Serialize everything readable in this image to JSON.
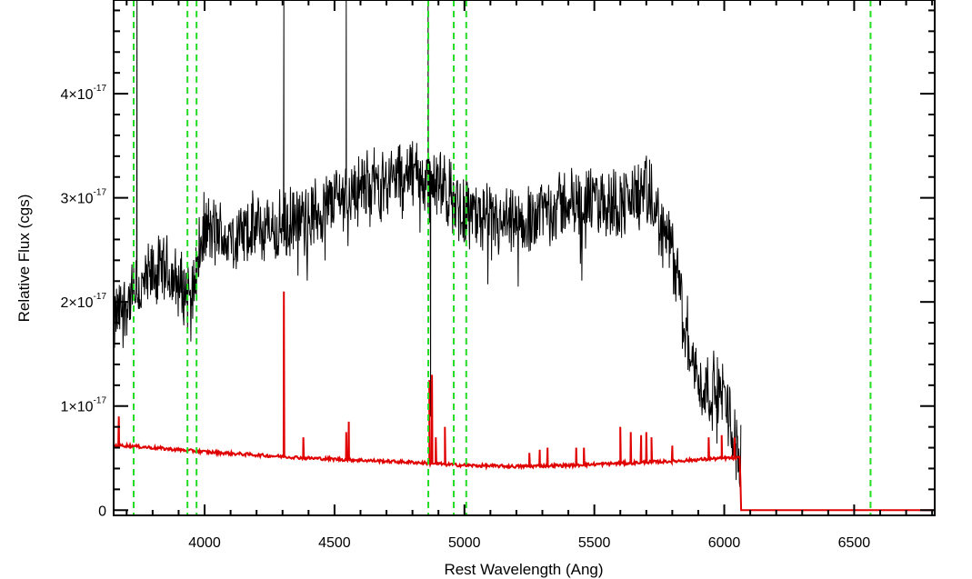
{
  "chart_data": {
    "type": "line",
    "title": "",
    "xlabel": "Rest Wavelength (Ang)",
    "ylabel": "Relative Flux (cgs)",
    "xlim": [
      3650,
      6810
    ],
    "ylim": [
      -0.05,
      4.9
    ],
    "y_unit_exponent": "-17",
    "x_ticks": [
      4000,
      4500,
      5000,
      5500,
      6000,
      6500
    ],
    "x_tick_labels": [
      "4000",
      "4500",
      "5000",
      "5500",
      "6000",
      "6500"
    ],
    "y_ticks": [
      0,
      1,
      2,
      3,
      4
    ],
    "y_tick_labels": [
      "0",
      "1×10",
      "2×10",
      "3×10",
      "4×10"
    ],
    "grid": false,
    "series": [
      {
        "color": "#000000",
        "style": "noisy-spectrum",
        "x": [
          3650,
          3700,
          3750,
          3800,
          3850,
          3900,
          3950,
          4000,
          4100,
          4200,
          4300,
          4400,
          4500,
          4600,
          4700,
          4800,
          4900,
          5000,
          5100,
          5200,
          5300,
          5400,
          5500,
          5600,
          5700,
          5800,
          5850,
          5900,
          5950,
          6000,
          6050,
          6065
        ],
        "y": [
          1.8,
          2.0,
          2.1,
          2.25,
          2.3,
          2.15,
          2.1,
          2.7,
          2.6,
          2.7,
          2.7,
          2.8,
          3.0,
          3.1,
          3.15,
          3.25,
          3.1,
          2.9,
          2.75,
          2.7,
          2.9,
          2.95,
          2.95,
          2.95,
          3.05,
          2.5,
          1.8,
          1.2,
          1.15,
          1.1,
          0.6,
          0.5
        ],
        "noise": 0.3,
        "spikes": [
          {
            "x": 3740,
            "y": 4.9
          },
          {
            "x": 4305,
            "y": 4.9
          },
          {
            "x": 4545,
            "y": 4.9
          },
          {
            "x": 4860,
            "y": 4.9
          },
          {
            "x": 4870,
            "y": 0.9
          }
        ]
      },
      {
        "color": "#e00000",
        "style": "sky-model",
        "x": [
          3650,
          3700,
          3800,
          3900,
          4000,
          4200,
          4400,
          4600,
          4800,
          5000,
          5200,
          5400,
          5600,
          5800,
          6000,
          6060,
          6065,
          6810
        ],
        "y": [
          0.62,
          0.62,
          0.6,
          0.58,
          0.56,
          0.53,
          0.5,
          0.48,
          0.46,
          0.43,
          0.42,
          0.43,
          0.45,
          0.47,
          0.5,
          0.5,
          0.0,
          0.0
        ],
        "lines": [
          {
            "x": 3670,
            "h": 0.9
          },
          {
            "x": 4305,
            "h": 2.1
          },
          {
            "x": 4380,
            "h": 0.7
          },
          {
            "x": 4545,
            "h": 0.75
          },
          {
            "x": 4555,
            "h": 0.85
          },
          {
            "x": 4865,
            "h": 1.25
          },
          {
            "x": 4875,
            "h": 1.3
          },
          {
            "x": 4890,
            "h": 0.7
          },
          {
            "x": 4925,
            "h": 0.8
          },
          {
            "x": 5250,
            "h": 0.55
          },
          {
            "x": 5290,
            "h": 0.58
          },
          {
            "x": 5320,
            "h": 0.6
          },
          {
            "x": 5430,
            "h": 0.6
          },
          {
            "x": 5460,
            "h": 0.6
          },
          {
            "x": 5600,
            "h": 0.8
          },
          {
            "x": 5640,
            "h": 0.75
          },
          {
            "x": 5680,
            "h": 0.72
          },
          {
            "x": 5700,
            "h": 0.75
          },
          {
            "x": 5720,
            "h": 0.7
          },
          {
            "x": 5800,
            "h": 0.62
          },
          {
            "x": 5940,
            "h": 0.7
          },
          {
            "x": 5990,
            "h": 0.72
          },
          {
            "x": 6040,
            "h": 0.7
          }
        ]
      }
    ],
    "reference_lines": {
      "color": "#22dd22",
      "style": "dashed",
      "x": [
        3727,
        3934,
        3969,
        4861,
        4959,
        5007,
        6563
      ]
    }
  }
}
